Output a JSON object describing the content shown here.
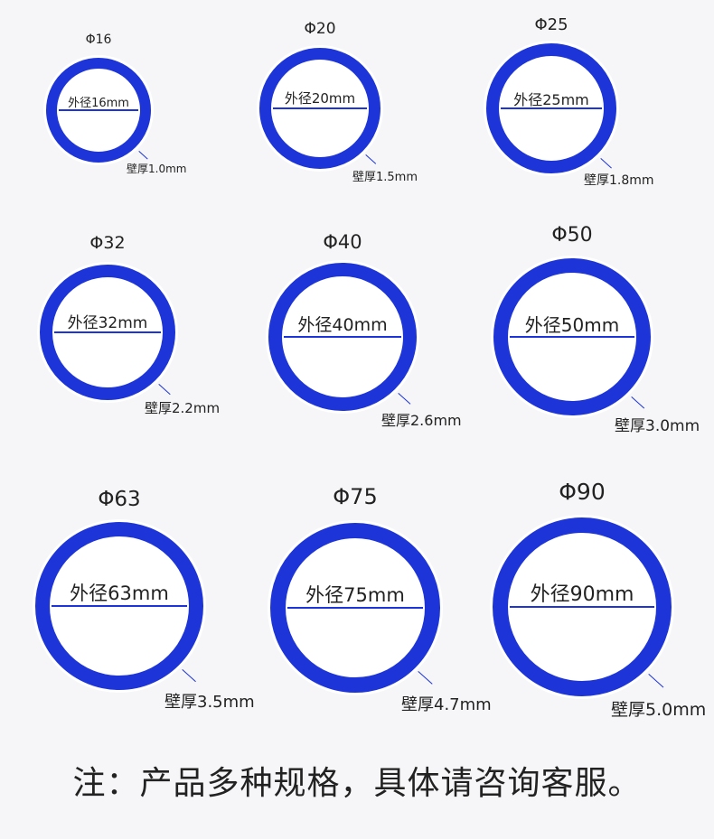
{
  "colors": {
    "ring": "#1c34d8",
    "background": "#f6f6f8"
  },
  "rings": [
    {
      "title": "Φ16",
      "diameter_label": "外径16mm",
      "thickness_label": "壁厚1.0mm"
    },
    {
      "title": "Φ20",
      "diameter_label": "外径20mm",
      "thickness_label": "壁厚1.5mm"
    },
    {
      "title": "Φ25",
      "diameter_label": "外径25mm",
      "thickness_label": "壁厚1.8mm"
    },
    {
      "title": "Φ32",
      "diameter_label": "外径32mm",
      "thickness_label": "壁厚2.2mm"
    },
    {
      "title": "Φ40",
      "diameter_label": "外径40mm",
      "thickness_label": "壁厚2.6mm"
    },
    {
      "title": "Φ50",
      "diameter_label": "外径50mm",
      "thickness_label": "壁厚3.0mm"
    },
    {
      "title": "Φ63",
      "diameter_label": "外径63mm",
      "thickness_label": "壁厚3.5mm"
    },
    {
      "title": "Φ75",
      "diameter_label": "外径75mm",
      "thickness_label": "壁厚4.7mm"
    },
    {
      "title": "Φ90",
      "diameter_label": "外径90mm",
      "thickness_label": "壁厚5.0mm"
    }
  ],
  "note": "注：产品多种规格，具体请咨询客服。"
}
